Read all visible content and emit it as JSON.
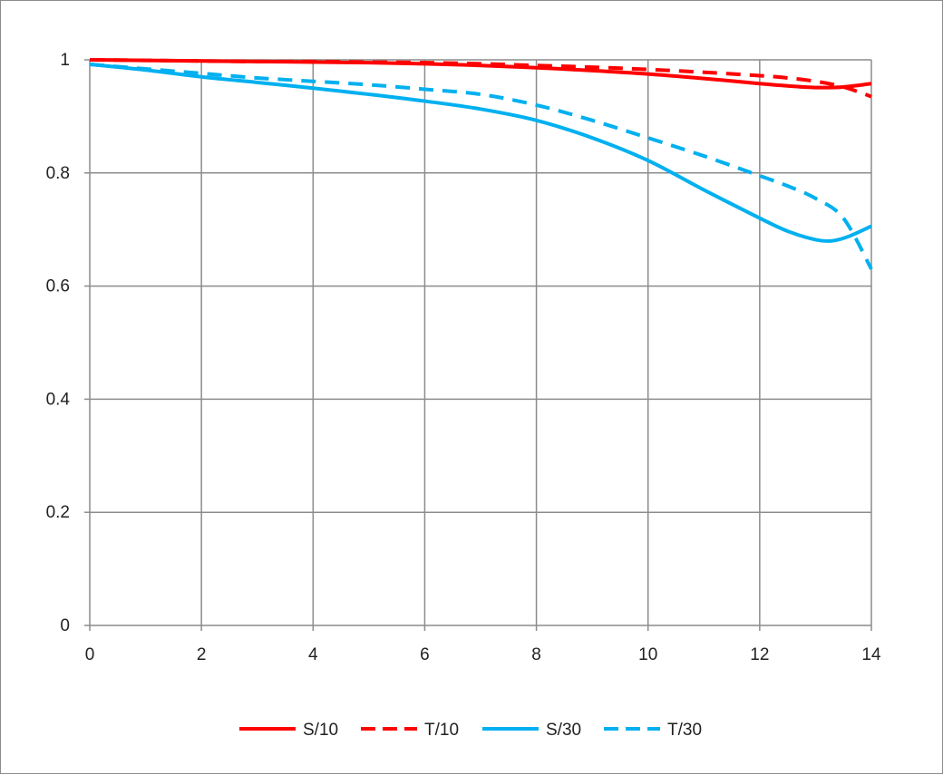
{
  "chart_data": {
    "type": "line",
    "title": "",
    "xlabel": "",
    "ylabel": "",
    "xlim": [
      0,
      14
    ],
    "ylim": [
      0,
      1
    ],
    "x_ticks": [
      0,
      2,
      4,
      6,
      8,
      10,
      12,
      14
    ],
    "y_ticks": [
      0,
      0.2,
      0.4,
      0.6,
      0.8,
      1
    ],
    "x_tick_labels": [
      "0",
      "2",
      "4",
      "6",
      "8",
      "10",
      "12",
      "14"
    ],
    "y_tick_labels": [
      "0",
      "0.2",
      "0.4",
      "0.6",
      "0.8",
      "1"
    ],
    "grid": true,
    "legend_position": "bottom",
    "series": [
      {
        "name": "S/10",
        "color": "#ff0000",
        "dash": "solid",
        "points": [
          [
            0,
            1.0
          ],
          [
            1,
            0.999
          ],
          [
            2,
            0.998
          ],
          [
            3,
            0.997
          ],
          [
            4,
            0.996
          ],
          [
            5,
            0.995
          ],
          [
            6,
            0.993
          ],
          [
            7,
            0.99
          ],
          [
            8,
            0.986
          ],
          [
            9,
            0.981
          ],
          [
            10,
            0.975
          ],
          [
            11,
            0.967
          ],
          [
            12,
            0.958
          ],
          [
            12.5,
            0.954
          ],
          [
            13,
            0.951
          ],
          [
            13.5,
            0.952
          ],
          [
            14,
            0.958
          ]
        ]
      },
      {
        "name": "T/10",
        "color": "#ff0000",
        "dash": "dashed",
        "points": [
          [
            0,
            1.0
          ],
          [
            1,
            0.999
          ],
          [
            2,
            0.998
          ],
          [
            3,
            0.997
          ],
          [
            4,
            0.997
          ],
          [
            5,
            0.996
          ],
          [
            6,
            0.995
          ],
          [
            7,
            0.993
          ],
          [
            8,
            0.99
          ],
          [
            9,
            0.987
          ],
          [
            10,
            0.983
          ],
          [
            11,
            0.978
          ],
          [
            12,
            0.972
          ],
          [
            12.5,
            0.968
          ],
          [
            13,
            0.962
          ],
          [
            13.5,
            0.952
          ],
          [
            14,
            0.935
          ]
        ]
      },
      {
        "name": "S/30",
        "color": "#00b0f0",
        "dash": "solid",
        "points": [
          [
            0,
            0.992
          ],
          [
            1,
            0.982
          ],
          [
            2,
            0.97
          ],
          [
            3,
            0.96
          ],
          [
            4,
            0.95
          ],
          [
            5,
            0.939
          ],
          [
            6,
            0.927
          ],
          [
            7,
            0.913
          ],
          [
            8,
            0.893
          ],
          [
            9,
            0.862
          ],
          [
            10,
            0.822
          ],
          [
            11,
            0.77
          ],
          [
            12,
            0.72
          ],
          [
            12.5,
            0.697
          ],
          [
            13,
            0.682
          ],
          [
            13.3,
            0.68
          ],
          [
            13.6,
            0.688
          ],
          [
            14,
            0.706
          ]
        ]
      },
      {
        "name": "T/30",
        "color": "#00b0f0",
        "dash": "dashed",
        "points": [
          [
            0,
            0.992
          ],
          [
            1,
            0.984
          ],
          [
            2,
            0.976
          ],
          [
            3,
            0.968
          ],
          [
            4,
            0.962
          ],
          [
            5,
            0.956
          ],
          [
            6,
            0.948
          ],
          [
            7,
            0.939
          ],
          [
            8,
            0.92
          ],
          [
            9,
            0.893
          ],
          [
            10,
            0.862
          ],
          [
            11,
            0.83
          ],
          [
            12,
            0.795
          ],
          [
            12.5,
            0.777
          ],
          [
            13,
            0.755
          ],
          [
            13.5,
            0.72
          ],
          [
            14,
            0.63
          ]
        ]
      }
    ]
  }
}
